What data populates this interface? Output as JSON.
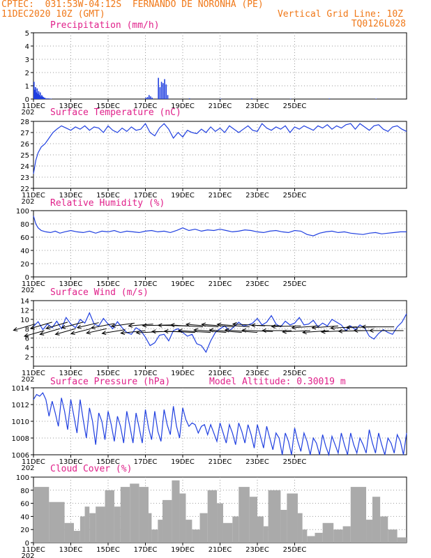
{
  "header": {
    "line1_left": "CPTEC:  031:53W-04:12S  FERNANDO DE NORONHA (PE)",
    "line2_left": "11DEC2020 10Z (GMT)",
    "line2_right": "Vertical Grid Line: 10Z",
    "line3_right": "TQ0126L028"
  },
  "x_tick_labels": [
    "11DEC",
    "13DEC",
    "15DEC",
    "17DEC",
    "19DEC",
    "21DEC",
    "23DEC",
    "25DEC"
  ],
  "x_year_label": "202",
  "colors": {
    "header": "#f07818",
    "title": "#e0208a",
    "series": "#1f3fe0",
    "cloud": "#aaaaaa",
    "grid": "#999999"
  },
  "chart_data": [
    {
      "type": "bar",
      "title": "Precipitation (mm/h)",
      "ylim": [
        0,
        5
      ],
      "yticks": [
        "0",
        "1",
        "2",
        "3",
        "4",
        "5"
      ],
      "x_hours": [
        0,
        1,
        2,
        3,
        4,
        5,
        6,
        7,
        8,
        9,
        10,
        11,
        12,
        13,
        14,
        16,
        18,
        20,
        22,
        144,
        146,
        148,
        150,
        152,
        160,
        162,
        164,
        166,
        168,
        170,
        172,
        200,
        240,
        280,
        330,
        380,
        440
      ],
      "values": [
        1.3,
        0.7,
        0.9,
        0.5,
        0.8,
        0.4,
        0.6,
        0.3,
        0.5,
        0.2,
        0.3,
        0.2,
        0.15,
        0.1,
        0.1,
        0.05,
        0.05,
        0.04,
        0.03,
        0.1,
        0.15,
        0.3,
        0.2,
        0.1,
        1.6,
        0.9,
        1.3,
        1.2,
        1.5,
        1.1,
        0.3,
        0.05,
        0.03,
        0.05,
        0.03,
        0.04,
        0.03
      ]
    },
    {
      "type": "line",
      "title": "Surface Temperature (nC)",
      "ylim": [
        22,
        28
      ],
      "yticks": [
        "22",
        "23",
        "24",
        "25",
        "26",
        "27",
        "28"
      ],
      "x_hours": [
        0,
        3,
        6,
        10,
        15,
        20,
        25,
        30,
        36,
        42,
        48,
        54,
        60,
        66,
        72,
        78,
        84,
        90,
        96,
        102,
        108,
        114,
        120,
        126,
        132,
        138,
        144,
        150,
        156,
        162,
        168,
        174,
        180,
        186,
        192,
        198,
        204,
        210,
        216,
        222,
        228,
        234,
        240,
        246,
        252,
        258,
        264,
        270,
        276,
        282,
        288,
        294,
        300,
        306,
        312,
        318,
        324,
        330,
        336,
        342,
        348,
        354,
        360,
        366,
        372,
        378,
        384,
        390,
        396,
        402,
        408,
        414,
        420,
        426,
        432,
        438,
        444,
        450,
        456,
        462,
        468,
        474,
        480
      ],
      "values": [
        23.3,
        24.5,
        25.2,
        25.7,
        26.0,
        26.5,
        27.0,
        27.3,
        27.6,
        27.4,
        27.2,
        27.5,
        27.3,
        27.6,
        27.2,
        27.5,
        27.4,
        27.0,
        27.6,
        27.2,
        27.0,
        27.4,
        27.1,
        27.5,
        27.2,
        27.3,
        27.8,
        27.0,
        26.7,
        27.4,
        27.8,
        27.3,
        26.5,
        27.0,
        26.6,
        27.2,
        27.0,
        26.9,
        27.3,
        27.0,
        27.5,
        27.1,
        27.4,
        27.0,
        27.6,
        27.3,
        27.0,
        27.3,
        27.6,
        27.2,
        27.1,
        27.8,
        27.4,
        27.2,
        27.5,
        27.3,
        27.6,
        27.0,
        27.5,
        27.3,
        27.6,
        27.4,
        27.2,
        27.6,
        27.4,
        27.7,
        27.3,
        27.6,
        27.4,
        27.7,
        27.8,
        27.3,
        27.8,
        27.5,
        27.2,
        27.6,
        27.7,
        27.3,
        27.1,
        27.5,
        27.6,
        27.3,
        27.1
      ]
    },
    {
      "type": "line",
      "title": "Relative Humidity (%)",
      "ylim": [
        0,
        100
      ],
      "yticks": [
        "0",
        "20",
        "40",
        "60",
        "80",
        "100"
      ],
      "x_hours": [
        0,
        3,
        6,
        10,
        16,
        22,
        28,
        34,
        40,
        48,
        56,
        64,
        72,
        80,
        88,
        96,
        104,
        112,
        120,
        128,
        136,
        144,
        152,
        160,
        168,
        176,
        184,
        192,
        200,
        208,
        216,
        224,
        232,
        240,
        248,
        256,
        264,
        272,
        280,
        288,
        296,
        304,
        312,
        320,
        328,
        336,
        344,
        352,
        360,
        368,
        376,
        384,
        392,
        400,
        408,
        416,
        424,
        432,
        440,
        448,
        456,
        464,
        472,
        480
      ],
      "values": [
        92,
        80,
        74,
        70,
        68,
        67,
        69,
        66,
        68,
        70,
        68,
        67,
        69,
        66,
        69,
        68,
        70,
        67,
        69,
        68,
        67,
        69,
        70,
        68,
        69,
        67,
        70,
        74,
        70,
        72,
        69,
        71,
        70,
        72,
        70,
        68,
        69,
        71,
        70,
        68,
        67,
        69,
        70,
        68,
        67,
        70,
        69,
        64,
        62,
        66,
        68,
        69,
        67,
        68,
        66,
        65,
        64,
        66,
        67,
        65,
        66,
        67,
        68,
        68
      ]
    },
    {
      "type": "line",
      "title": "Surface Wind (m/s)",
      "ylim": [
        0,
        14
      ],
      "yticks": [
        "2",
        "4",
        "6",
        "8",
        "10",
        "12",
        "14"
      ],
      "x_hours": [
        0,
        6,
        12,
        18,
        24,
        30,
        36,
        42,
        48,
        54,
        60,
        66,
        72,
        78,
        84,
        90,
        96,
        102,
        108,
        114,
        120,
        126,
        132,
        138,
        144,
        150,
        156,
        162,
        168,
        174,
        180,
        186,
        192,
        198,
        204,
        210,
        216,
        222,
        228,
        234,
        240,
        246,
        252,
        258,
        264,
        270,
        276,
        282,
        288,
        294,
        300,
        306,
        312,
        318,
        324,
        330,
        336,
        342,
        348,
        354,
        360,
        366,
        372,
        378,
        384,
        390,
        396,
        402,
        408,
        414,
        420,
        426,
        432,
        438,
        444,
        450,
        456,
        462,
        468,
        474,
        480
      ],
      "values": [
        8.5,
        9.5,
        7.8,
        9.0,
        8.2,
        9.6,
        8.0,
        10.4,
        9.0,
        8.2,
        10.0,
        9.2,
        11.4,
        9.0,
        8.6,
        10.2,
        9.0,
        8.0,
        9.5,
        8.2,
        7.2,
        6.8,
        8.2,
        7.6,
        6.2,
        4.4,
        5.0,
        6.6,
        6.8,
        5.4,
        7.6,
        8.0,
        7.2,
        6.4,
        6.8,
        4.8,
        4.4,
        3.0,
        5.4,
        7.2,
        8.0,
        8.6,
        7.6,
        8.4,
        9.4,
        8.6,
        8.8,
        9.2,
        10.2,
        8.8,
        9.4,
        10.8,
        9.0,
        8.4,
        9.6,
        8.8,
        9.2,
        10.4,
        8.8,
        9.0,
        9.8,
        8.4,
        9.2,
        8.6,
        10.0,
        9.4,
        8.8,
        7.6,
        8.6,
        7.8,
        8.8,
        8.2,
        6.4,
        5.8,
        7.0,
        7.8,
        7.2,
        6.8,
        8.4,
        9.4,
        11.2
      ],
      "arrow_hours": [
        2,
        14,
        24,
        34,
        44,
        54,
        64,
        74,
        84,
        94,
        104,
        118,
        130,
        144,
        154,
        166,
        176,
        188,
        198,
        208,
        218,
        228,
        238,
        248,
        258,
        268,
        278,
        288,
        298,
        308,
        320,
        332,
        344,
        356,
        368,
        380,
        392,
        404,
        416,
        428,
        440,
        452,
        464,
        476
      ],
      "arrow_values": [
        9,
        7.6,
        9.4,
        8,
        9.4,
        8,
        9.4,
        8,
        9.3,
        8,
        9.1,
        7.8,
        9.2,
        7.6,
        9,
        7.4,
        8.8,
        7.4,
        8.6,
        7.2,
        8.4,
        7.2,
        8.4,
        7.2,
        8.4,
        7.2,
        8.4,
        7.2,
        8.6,
        7.4,
        8.6,
        7.6,
        8.6,
        7.6,
        8.6,
        7.6,
        8.6,
        7.6,
        8.4,
        7.6,
        8.4,
        7.6,
        8.4,
        7.6
      ],
      "arrow_dx": [
        -14,
        -13,
        -14,
        -13,
        -14,
        -13,
        -14,
        -13,
        -14,
        -13,
        -15,
        -15,
        -15,
        -16,
        -16,
        -17,
        -18,
        -18,
        -19,
        -20,
        -21,
        -21,
        -21,
        -21,
        -21,
        -21,
        -21,
        -21,
        -21,
        -20,
        -20,
        -19,
        -19,
        -18,
        -18,
        -17,
        -17,
        -17,
        -17,
        -18,
        -19,
        -20,
        -21,
        -22
      ],
      "arrow_dy": [
        10,
        9,
        10,
        9,
        10,
        9,
        9,
        8,
        8,
        7,
        7,
        6,
        5,
        4,
        3,
        2,
        1,
        0,
        -1,
        -2,
        -3,
        -3,
        -4,
        -4,
        -4,
        -4,
        -4,
        -4,
        -3,
        -2,
        -1,
        0,
        1,
        2,
        3,
        3,
        3,
        2,
        2,
        1,
        1,
        0,
        0,
        0
      ]
    },
    {
      "type": "line",
      "title": "Surface Pressure (hPa)",
      "annotation": "Model Altitude: 0.30019 m",
      "ylim": [
        1006,
        1014
      ],
      "yticks": [
        "1006",
        "1008",
        "1010",
        "1012",
        "1014"
      ],
      "x_hours": [
        0,
        4,
        8,
        12,
        16,
        20,
        24,
        28,
        32,
        36,
        40,
        44,
        48,
        52,
        56,
        60,
        64,
        68,
        72,
        76,
        80,
        84,
        88,
        92,
        96,
        100,
        104,
        108,
        112,
        116,
        120,
        124,
        128,
        132,
        136,
        140,
        144,
        148,
        152,
        156,
        160,
        164,
        168,
        172,
        176,
        180,
        184,
        188,
        192,
        196,
        200,
        204,
        208,
        212,
        216,
        220,
        224,
        228,
        232,
        236,
        240,
        244,
        248,
        252,
        256,
        260,
        264,
        268,
        272,
        276,
        280,
        284,
        288,
        292,
        296,
        300,
        304,
        308,
        312,
        316,
        320,
        324,
        328,
        332,
        336,
        340,
        344,
        348,
        352,
        356,
        360,
        364,
        368,
        372,
        376,
        380,
        384,
        388,
        392,
        396,
        400,
        404,
        408,
        412,
        416,
        420,
        424,
        428,
        432,
        436,
        440,
        444,
        448,
        452,
        456,
        460,
        464,
        468,
        472,
        476,
        480
      ],
      "values": [
        1012.6,
        1013.2,
        1013.0,
        1013.4,
        1012.6,
        1010.6,
        1012.4,
        1011.0,
        1009.4,
        1012.8,
        1011.2,
        1009.0,
        1012.6,
        1010.6,
        1008.6,
        1012.6,
        1010.2,
        1008.0,
        1011.6,
        1010.0,
        1007.2,
        1011.0,
        1010.0,
        1007.8,
        1011.2,
        1009.6,
        1007.6,
        1010.6,
        1009.4,
        1007.4,
        1011.2,
        1009.4,
        1007.4,
        1011.0,
        1009.2,
        1007.4,
        1011.4,
        1009.2,
        1007.8,
        1011.2,
        1008.8,
        1007.6,
        1011.4,
        1009.6,
        1008.4,
        1011.8,
        1009.4,
        1008.0,
        1011.6,
        1010.2,
        1009.4,
        1009.8,
        1009.6,
        1008.6,
        1009.4,
        1009.6,
        1008.4,
        1009.6,
        1008.6,
        1007.6,
        1009.8,
        1008.6,
        1007.4,
        1009.6,
        1008.6,
        1007.2,
        1009.8,
        1008.8,
        1007.4,
        1009.6,
        1008.4,
        1006.8,
        1009.6,
        1008.2,
        1006.8,
        1009.4,
        1008.0,
        1006.6,
        1008.6,
        1008.0,
        1006.0,
        1008.6,
        1007.6,
        1006.0,
        1009.2,
        1007.6,
        1006.4,
        1008.6,
        1007.6,
        1006.0,
        1008.0,
        1007.4,
        1006.0,
        1008.4,
        1007.0,
        1006.0,
        1008.2,
        1007.2,
        1006.2,
        1008.6,
        1007.2,
        1006.0,
        1008.6,
        1007.2,
        1006.2,
        1008.0,
        1007.2,
        1006.2,
        1009.0,
        1007.4,
        1006.2,
        1008.6,
        1007.2,
        1006.0,
        1008.0,
        1007.4,
        1006.2,
        1008.4,
        1007.6,
        1006.0,
        1008.6
      ]
    },
    {
      "type": "bar",
      "title": "Cloud Cover (%)",
      "ylim": [
        0,
        100
      ],
      "yticks": [
        "0",
        "20",
        "40",
        "60",
        "80",
        "100"
      ],
      "segments": [
        {
          "h0": 0,
          "h1": 20,
          "level": 85
        },
        {
          "h0": 20,
          "h1": 40,
          "level": 62
        },
        {
          "h0": 40,
          "h1": 52,
          "level": 30
        },
        {
          "h0": 52,
          "h1": 60,
          "level": 18
        },
        {
          "h0": 60,
          "h1": 66,
          "level": 40
        },
        {
          "h0": 66,
          "h1": 72,
          "level": 55
        },
        {
          "h0": 72,
          "h1": 80,
          "level": 45
        },
        {
          "h0": 80,
          "h1": 92,
          "level": 55
        },
        {
          "h0": 92,
          "h1": 104,
          "level": 80
        },
        {
          "h0": 104,
          "h1": 112,
          "level": 55
        },
        {
          "h0": 112,
          "h1": 124,
          "level": 85
        },
        {
          "h0": 124,
          "h1": 136,
          "level": 90
        },
        {
          "h0": 136,
          "h1": 148,
          "level": 85
        },
        {
          "h0": 148,
          "h1": 152,
          "level": 45
        },
        {
          "h0": 152,
          "h1": 160,
          "level": 20
        },
        {
          "h0": 160,
          "h1": 166,
          "level": 35
        },
        {
          "h0": 166,
          "h1": 178,
          "level": 65
        },
        {
          "h0": 178,
          "h1": 188,
          "level": 95
        },
        {
          "h0": 188,
          "h1": 196,
          "level": 75
        },
        {
          "h0": 196,
          "h1": 204,
          "level": 35
        },
        {
          "h0": 204,
          "h1": 214,
          "level": 20
        },
        {
          "h0": 214,
          "h1": 224,
          "level": 45
        },
        {
          "h0": 224,
          "h1": 236,
          "level": 80
        },
        {
          "h0": 236,
          "h1": 244,
          "level": 60
        },
        {
          "h0": 244,
          "h1": 256,
          "level": 30
        },
        {
          "h0": 256,
          "h1": 264,
          "level": 40
        },
        {
          "h0": 264,
          "h1": 278,
          "level": 85
        },
        {
          "h0": 278,
          "h1": 288,
          "level": 70
        },
        {
          "h0": 288,
          "h1": 296,
          "level": 40
        },
        {
          "h0": 296,
          "h1": 302,
          "level": 25
        },
        {
          "h0": 302,
          "h1": 318,
          "level": 80
        },
        {
          "h0": 318,
          "h1": 326,
          "level": 50
        },
        {
          "h0": 326,
          "h1": 340,
          "level": 75
        },
        {
          "h0": 340,
          "h1": 346,
          "level": 45
        },
        {
          "h0": 346,
          "h1": 352,
          "level": 20
        },
        {
          "h0": 352,
          "h1": 362,
          "level": 10
        },
        {
          "h0": 362,
          "h1": 372,
          "level": 15
        },
        {
          "h0": 372,
          "h1": 386,
          "level": 30
        },
        {
          "h0": 386,
          "h1": 398,
          "level": 20
        },
        {
          "h0": 398,
          "h1": 408,
          "level": 25
        },
        {
          "h0": 408,
          "h1": 428,
          "level": 85
        },
        {
          "h0": 428,
          "h1": 436,
          "level": 35
        },
        {
          "h0": 436,
          "h1": 446,
          "level": 70
        },
        {
          "h0": 446,
          "h1": 456,
          "level": 40
        },
        {
          "h0": 456,
          "h1": 468,
          "level": 20
        },
        {
          "h0": 468,
          "h1": 480,
          "level": 8
        }
      ]
    }
  ]
}
